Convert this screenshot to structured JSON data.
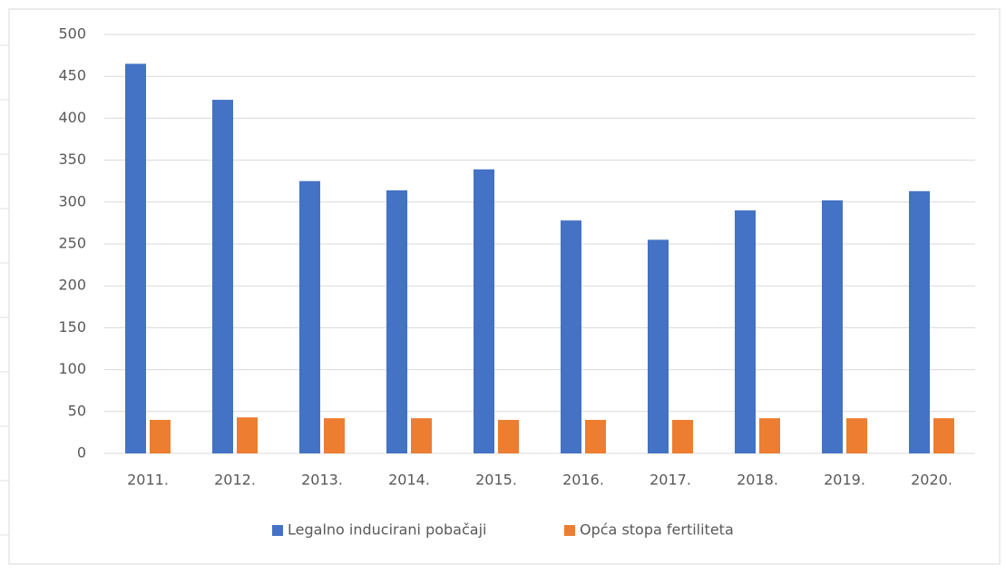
{
  "chart_data": {
    "type": "bar",
    "categories": [
      "2011.",
      "2012.",
      "2013.",
      "2014.",
      "2015.",
      "2016.",
      "2017.",
      "2018.",
      "2019.",
      "2020."
    ],
    "series": [
      {
        "name": "Legalno inducirani pobačaji",
        "color": "#4472c4",
        "values": [
          465,
          422,
          325,
          314,
          339,
          278,
          255,
          290,
          302,
          313
        ]
      },
      {
        "name": "Opća stopa fertiliteta",
        "color": "#ed7d31",
        "values": [
          40,
          43,
          42,
          42,
          40,
          40,
          40,
          42,
          42,
          42
        ]
      }
    ],
    "ylim": [
      0,
      500
    ],
    "yticks": [
      0,
      50,
      100,
      150,
      200,
      250,
      300,
      350,
      400,
      450,
      500
    ],
    "grid": true,
    "legend": "bottom"
  }
}
